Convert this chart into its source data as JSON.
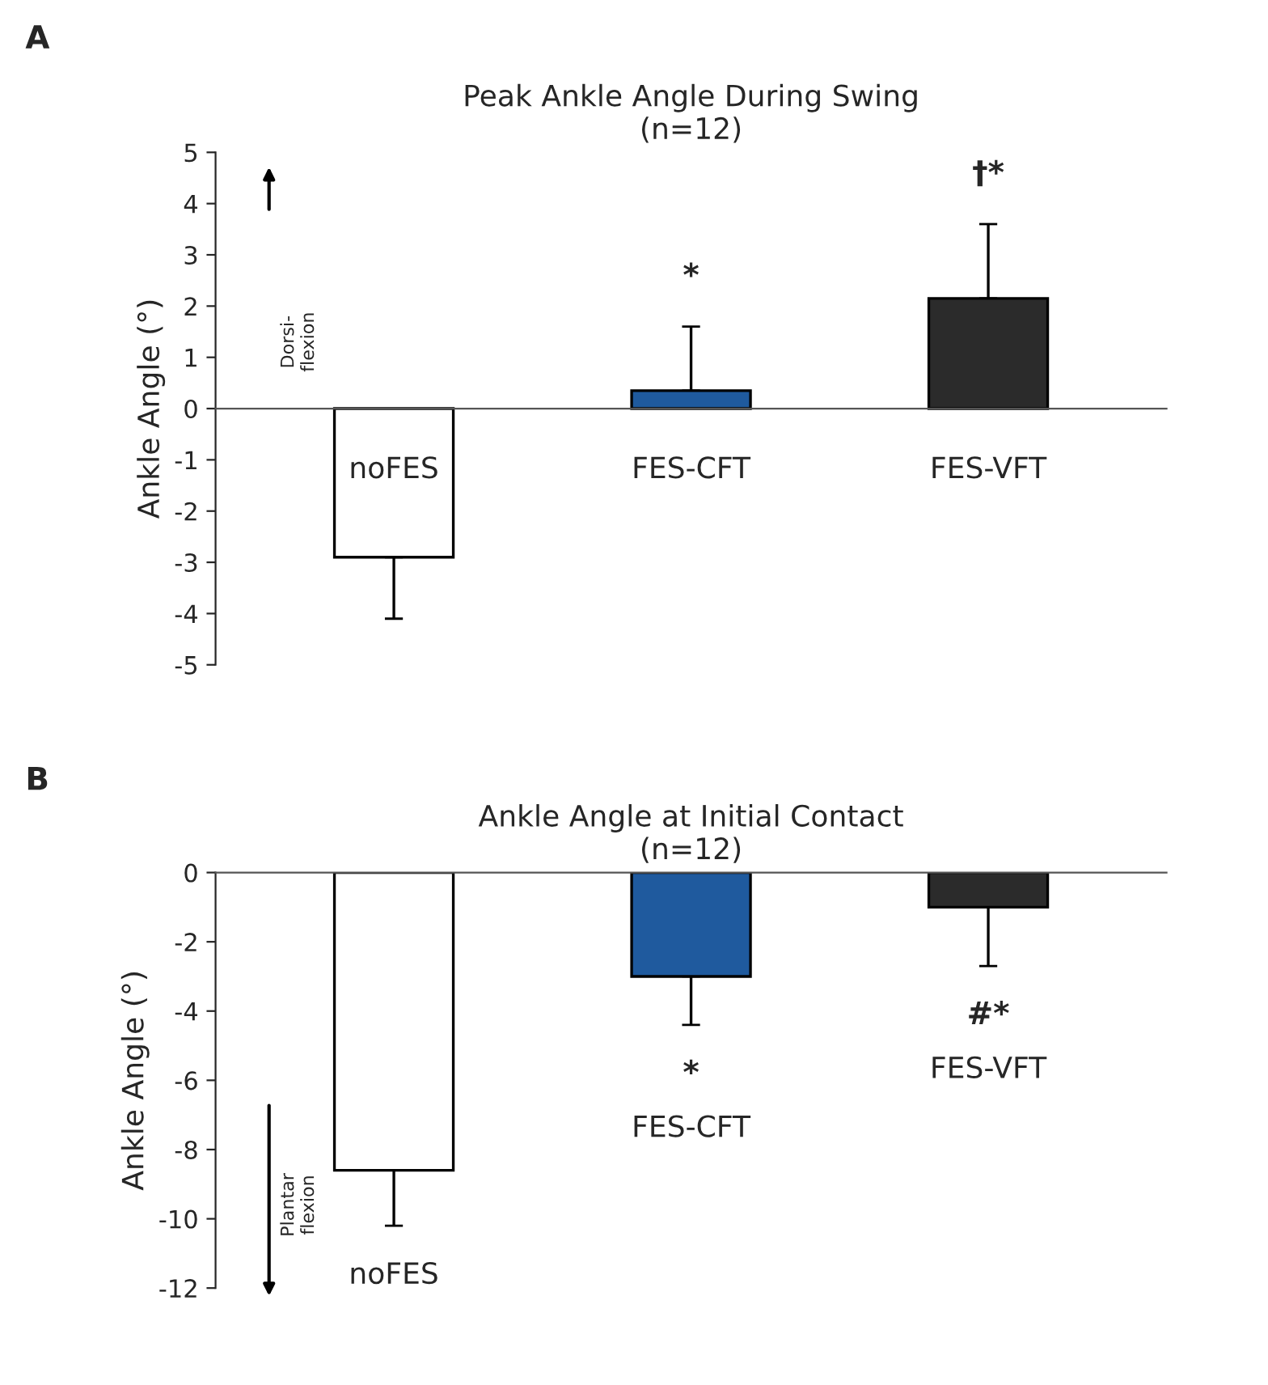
{
  "chart_data": [
    {
      "type": "bar",
      "title": "Peak Ankle Angle During Swing\n(n=12)",
      "ylabel": "Ankle Angle (°)",
      "categories": [
        "noFES",
        "FES-CFT",
        "FES-VFT"
      ],
      "values": [
        -2.9,
        0.35,
        2.15
      ],
      "errors": [
        [
          -4.1,
          -2.9
        ],
        [
          0.35,
          1.6
        ],
        [
          2.15,
          3.6
        ]
      ],
      "colors": [
        "#ffffff",
        "#1f5a9e",
        "#2b2b2b"
      ],
      "ylim": [
        -5,
        5
      ],
      "yticks": [
        -5,
        -4,
        -3,
        -2,
        -1,
        0,
        1,
        2,
        3,
        4,
        5
      ],
      "grid": false,
      "annotations": [
        "A",
        "Dorsi-\nflexion",
        {
          "text": "*",
          "x": "FES-CFT",
          "y": 1.6
        },
        {
          "text": "†*",
          "x": "FES-VFT",
          "y": 3.6
        }
      ]
    },
    {
      "type": "bar",
      "title": "Ankle Angle at Initial Contact\n(n=12)",
      "ylabel": "Ankle Angle (°)",
      "categories": [
        "noFES",
        "FES-CFT",
        "FES-VFT"
      ],
      "values": [
        -8.6,
        -3.0,
        -1.0
      ],
      "errors": [
        [
          -10.2,
          -8.6
        ],
        [
          -4.4,
          -3.0
        ],
        [
          -2.7,
          -1.0
        ]
      ],
      "colors": [
        "#ffffff",
        "#1f5a9e",
        "#2b2b2b"
      ],
      "ylim": [
        -12,
        0
      ],
      "yticks": [
        -12,
        -10,
        -8,
        -6,
        -4,
        -2,
        0
      ],
      "grid": false,
      "annotations": [
        "B",
        "Plantar\nflexion",
        {
          "text": "*",
          "x": "FES-CFT",
          "y": -4.4
        },
        {
          "text": "#*",
          "x": "FES-VFT",
          "y": -2.7
        }
      ]
    }
  ]
}
